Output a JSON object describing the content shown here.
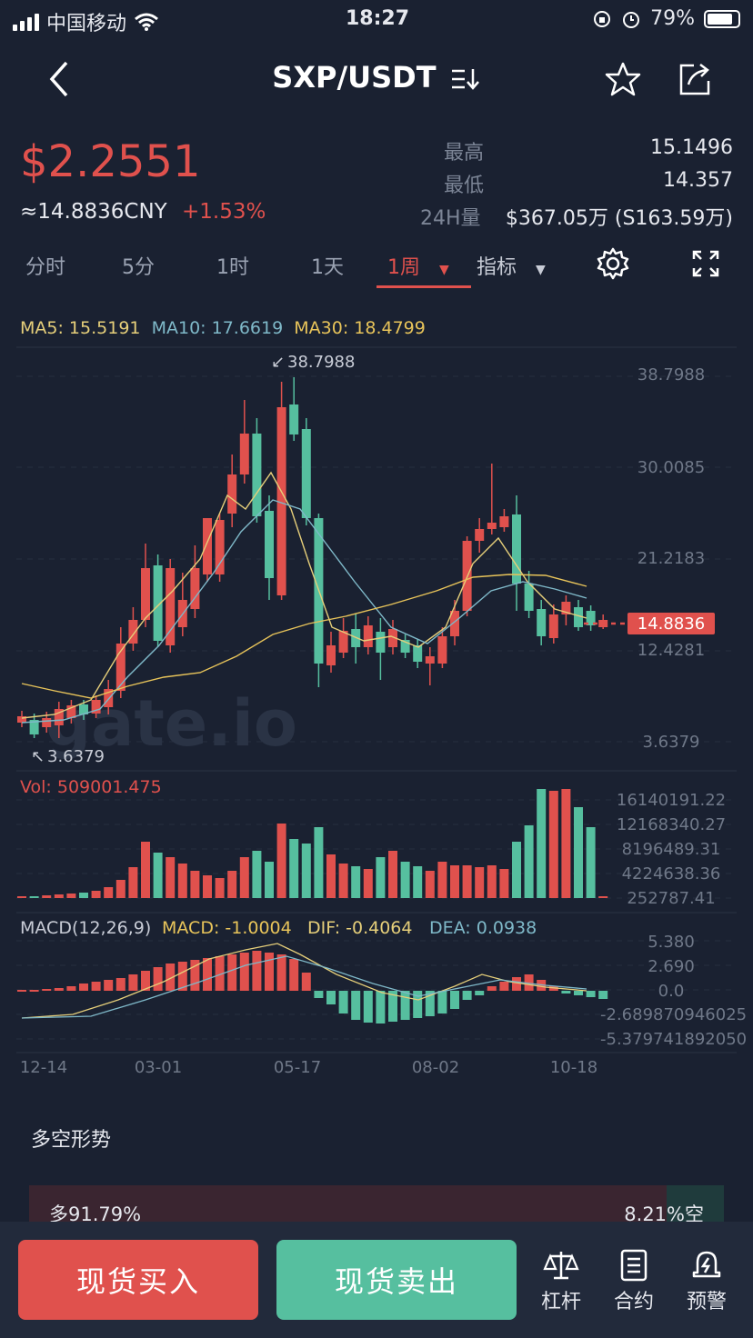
{
  "status_bar": {
    "carrier": "中国移动",
    "time": "18:27",
    "battery": "79%"
  },
  "header": {
    "pair": "SXP/USDT"
  },
  "ticker": {
    "price": "$2.2551",
    "cny": "≈14.8836CNY",
    "change": "+1.53%",
    "high_label": "最高",
    "high_value": "15.1496",
    "low_label": "最低",
    "low_value": "14.357",
    "vol_label": "24H量",
    "vol_value": "$367.05万 (S163.59万)"
  },
  "tabs": [
    "分时",
    "5分",
    "1时",
    "1天",
    "1周",
    "指标"
  ],
  "active_tab": "1周",
  "ma": {
    "ma5": "MA5: 15.5191",
    "ma10": "MA10: 17.6619",
    "ma30": "MA30: 18.4799"
  },
  "colors": {
    "up": "#e0514d",
    "down": "#56bf9f",
    "ma5": "#e6cf7a",
    "ma10": "#7fb9c9",
    "ma30": "#e8c45a",
    "bg": "#1a2131"
  },
  "main_chart": {
    "y_labels": [
      "38.7988",
      "30.0085",
      "21.2183",
      "12.4281",
      "3.6379"
    ],
    "max_marker": "38.7988",
    "min_marker": "3.6379",
    "current_price": "14.8836",
    "watermark": "gate.io"
  },
  "volume": {
    "label": "Vol: 509001.475",
    "y_labels": [
      "16140191.22",
      "12168340.27",
      "8196489.31",
      "4224638.36",
      "252787.41"
    ]
  },
  "macd": {
    "label": "MACD(12,26,9)",
    "macd": "MACD: -1.0004",
    "dif": "DIF: -0.4064",
    "dea": "DEA: 0.0938",
    "y_labels": [
      "5.380",
      "2.690",
      "0.0",
      "-2.689870946025",
      "-5.379741892050"
    ]
  },
  "x_labels": [
    "12-14",
    "03-01",
    "05-17",
    "08-02",
    "10-18"
  ],
  "sentiment": {
    "title": "多空形势",
    "long": "多91.79%",
    "short": "8.21%空",
    "long_ratio": 0.9179
  },
  "actions": {
    "buy": "现货买入",
    "sell": "现货卖出",
    "leverage": "杠杆",
    "contract": "合约",
    "alert": "预警"
  }
}
